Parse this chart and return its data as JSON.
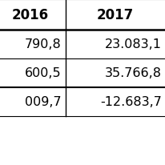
{
  "col_headers": [
    "2016",
    "2017"
  ],
  "rows": [
    [
      "790,8",
      "23.083,1"
    ],
    [
      "600,5",
      "35.766,8"
    ],
    [
      "009,7",
      "-12.683,7"
    ]
  ],
  "header_bg": "#ffffff",
  "row_bg_even": "#ffffff",
  "row_bg_odd": "#ffffff",
  "text_color": "#000000",
  "border_color": "#000000",
  "figsize": [
    2.07,
    2.07
  ],
  "dpi": 100,
  "font_size": 11.5,
  "header_font_size": 12
}
